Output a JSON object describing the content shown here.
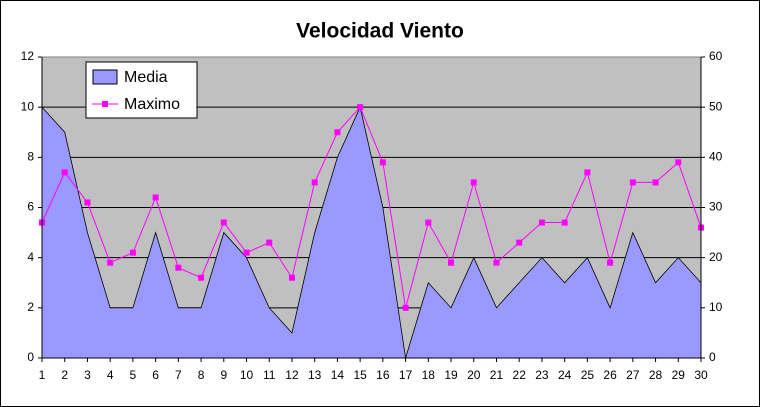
{
  "chart_data": {
    "type": "area-line",
    "title": "Velocidad Viento",
    "categories": [
      1,
      2,
      3,
      4,
      5,
      6,
      7,
      8,
      9,
      10,
      11,
      12,
      13,
      14,
      15,
      16,
      17,
      18,
      19,
      20,
      21,
      22,
      23,
      24,
      25,
      26,
      27,
      28,
      29,
      30
    ],
    "series": [
      {
        "name": "Media",
        "color": "#9999ff",
        "kind": "area",
        "axis": "y",
        "values": [
          10,
          9,
          5,
          2,
          2,
          5,
          2,
          2,
          5,
          4,
          2,
          1,
          5,
          8,
          10,
          6,
          0,
          3,
          2,
          4,
          2,
          3,
          4,
          3,
          4,
          2,
          5,
          3,
          4,
          3
        ]
      },
      {
        "name": "Maximo",
        "color": "#ff00ff",
        "kind": "line",
        "axis": "y2",
        "values": [
          27,
          37,
          31,
          19,
          21,
          32,
          18,
          16,
          27,
          21,
          23,
          16,
          35,
          45,
          50,
          39,
          10,
          27,
          19,
          35,
          19,
          23,
          27,
          27,
          37,
          19,
          35,
          35,
          39,
          26
        ]
      }
    ],
    "ylim": [
      0,
      12
    ],
    "yticks": [
      0,
      2,
      4,
      6,
      8,
      10,
      12
    ],
    "y2lim": [
      0,
      60
    ],
    "y2ticks": [
      0,
      10,
      20,
      30,
      40,
      50,
      60
    ],
    "grid": true,
    "legend": "upper-left",
    "plot_background": "#c0c0c0"
  }
}
